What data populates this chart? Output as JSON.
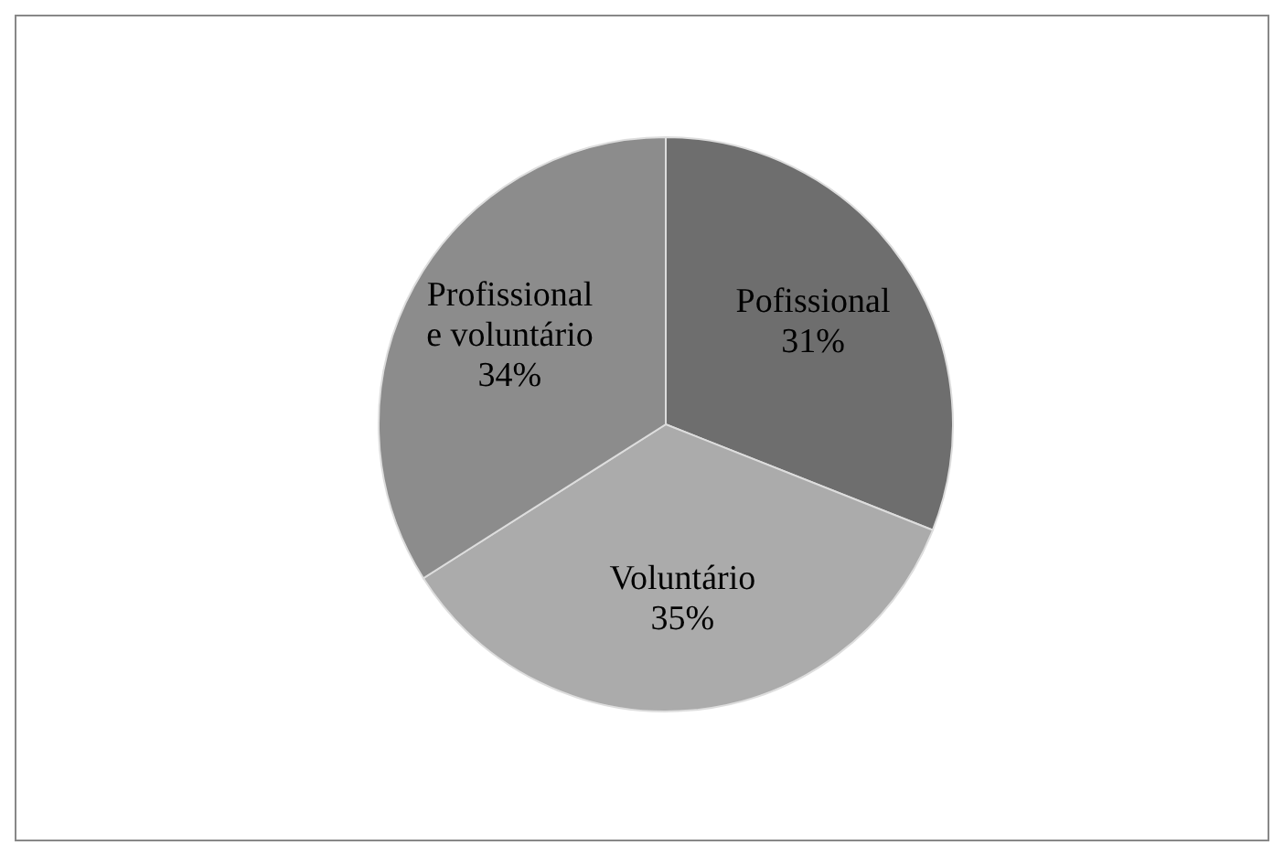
{
  "chart_data": {
    "type": "pie",
    "categories": [
      "Pofissional",
      "Voluntário",
      "Profissional e voluntário"
    ],
    "values": [
      31,
      35,
      34
    ],
    "value_labels": [
      "31%",
      "35%",
      "34%"
    ],
    "colors": [
      "#6e6e6e",
      "#ababab",
      "#8c8c8c"
    ]
  }
}
